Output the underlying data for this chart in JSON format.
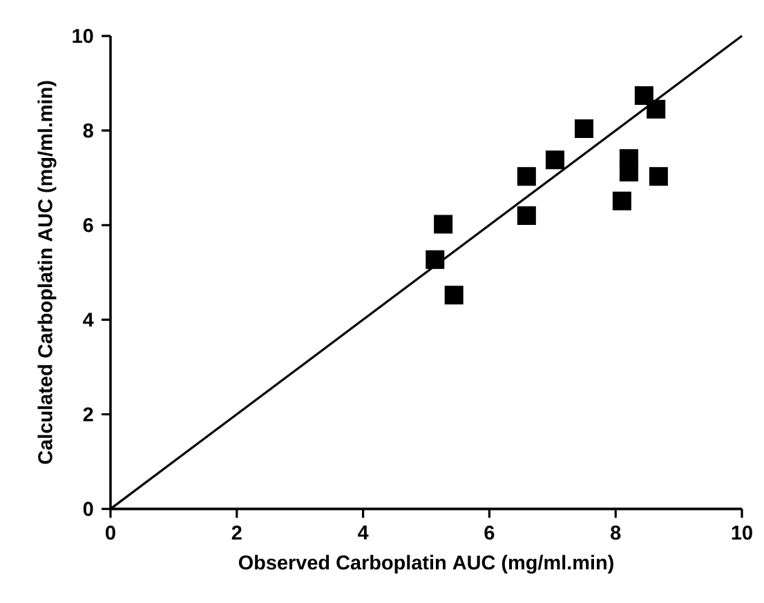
{
  "chart_data": {
    "type": "scatter",
    "xlabel": "Observed Carboplatin AUC (mg/ml.min)",
    "ylabel": "Calculated Carboplatin AUC (mg/ml.min)",
    "xlim": [
      0,
      10
    ],
    "ylim": [
      0,
      10
    ],
    "xticks": [
      0,
      2,
      4,
      6,
      8,
      10
    ],
    "yticks": [
      0,
      2,
      4,
      6,
      8,
      10
    ],
    "marker": "square",
    "grid": false,
    "series": [
      {
        "color": "#000000",
        "x": [
          5.14,
          5.27,
          5.44,
          6.59,
          6.59,
          7.04,
          7.5,
          8.1,
          8.21,
          8.21,
          8.45,
          8.64,
          8.68
        ],
        "values": [
          5.27,
          6.02,
          4.52,
          6.2,
          7.03,
          7.38,
          8.04,
          6.51,
          7.41,
          7.12,
          8.74,
          8.45,
          7.03
        ]
      },
      {
        "type": "line",
        "color": "#000000",
        "marker": "none",
        "x": [
          0,
          10
        ],
        "values": [
          0,
          10
        ]
      }
    ]
  }
}
